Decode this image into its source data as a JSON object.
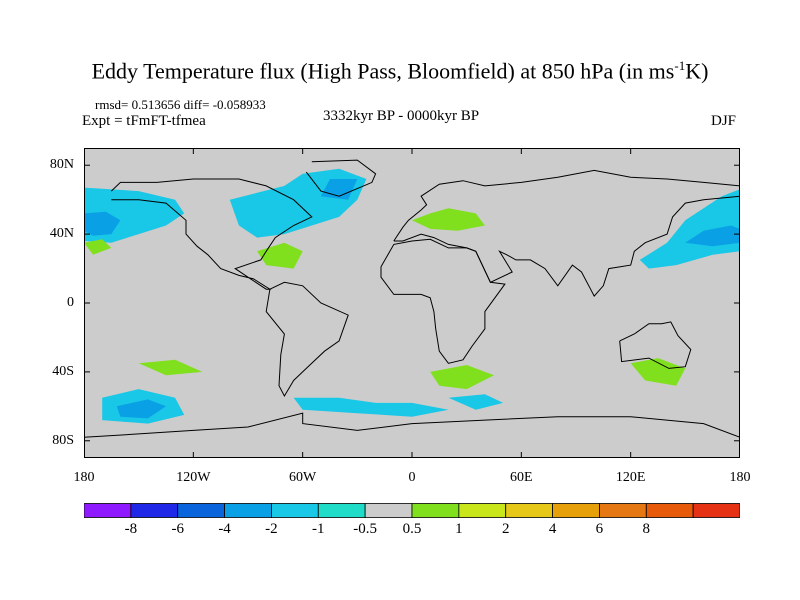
{
  "title": {
    "main": "Eddy Temperature flux (High Pass, Bloomfield) at 850 hPa (in ms",
    "sup": "-1",
    "tail": "K)"
  },
  "stats_text": "rmsd= 0.513656 diff= -0.058933",
  "experiment_text": "Expt = tFmFT-tfmea",
  "period_text": "3332kyr BP - 0000kyr BP",
  "season_text": "DJF",
  "map": {
    "lon_range": [
      -180,
      180
    ],
    "lat_range": [
      -90,
      90
    ],
    "y_ticks": [
      {
        "lat": 80,
        "label": "80N"
      },
      {
        "lat": 40,
        "label": "40N"
      },
      {
        "lat": 0,
        "label": "0"
      },
      {
        "lat": -40,
        "label": "40S"
      },
      {
        "lat": -80,
        "label": "80S"
      }
    ],
    "x_ticks": [
      {
        "lon": -180,
        "label": "180"
      },
      {
        "lon": -120,
        "label": "120W"
      },
      {
        "lon": -60,
        "label": "60W"
      },
      {
        "lon": 0,
        "label": "0"
      },
      {
        "lon": 60,
        "label": "60E"
      },
      {
        "lon": 120,
        "label": "120E"
      },
      {
        "lon": 180,
        "label": "180"
      }
    ],
    "background_color": "#cccccc",
    "anomaly_regions": [
      {
        "name": "north-pacific-east-cyan",
        "color": "#19c7e6",
        "points": [
          [
            -180,
            67
          ],
          [
            -150,
            65
          ],
          [
            -130,
            60
          ],
          [
            -125,
            52
          ],
          [
            -135,
            45
          ],
          [
            -150,
            40
          ],
          [
            -165,
            35
          ],
          [
            -180,
            36
          ]
        ]
      },
      {
        "name": "north-pacific-east-blue",
        "color": "#0aa0e6",
        "points": [
          [
            -180,
            52
          ],
          [
            -168,
            53
          ],
          [
            -160,
            48
          ],
          [
            -165,
            40
          ],
          [
            -175,
            39
          ],
          [
            -180,
            42
          ]
        ]
      },
      {
        "name": "north-atlantic-cyan",
        "color": "#19c7e6",
        "points": [
          [
            -100,
            60
          ],
          [
            -85,
            64
          ],
          [
            -70,
            68
          ],
          [
            -60,
            75
          ],
          [
            -40,
            78
          ],
          [
            -25,
            72
          ],
          [
            -30,
            60
          ],
          [
            -40,
            50
          ],
          [
            -55,
            45
          ],
          [
            -70,
            40
          ],
          [
            -85,
            38
          ],
          [
            -95,
            45
          ]
        ]
      },
      {
        "name": "greenland-blue",
        "color": "#0aa0e6",
        "points": [
          [
            -45,
            72
          ],
          [
            -30,
            72
          ],
          [
            -35,
            60
          ],
          [
            -50,
            62
          ]
        ]
      },
      {
        "name": "north-pacific-west-cyan",
        "color": "#19c7e6",
        "points": [
          [
            125,
            25
          ],
          [
            140,
            35
          ],
          [
            150,
            48
          ],
          [
            160,
            55
          ],
          [
            170,
            62
          ],
          [
            180,
            66
          ],
          [
            180,
            30
          ],
          [
            165,
            28
          ],
          [
            145,
            22
          ],
          [
            130,
            20
          ]
        ]
      },
      {
        "name": "north-pacific-west-blue",
        "color": "#0aa0e6",
        "points": [
          [
            150,
            35
          ],
          [
            160,
            42
          ],
          [
            175,
            45
          ],
          [
            180,
            43
          ],
          [
            180,
            35
          ],
          [
            165,
            33
          ]
        ]
      },
      {
        "name": "south-pacific-cyan",
        "color": "#19c7e6",
        "points": [
          [
            -170,
            -55
          ],
          [
            -150,
            -50
          ],
          [
            -130,
            -55
          ],
          [
            -125,
            -65
          ],
          [
            -145,
            -70
          ],
          [
            -170,
            -68
          ]
        ]
      },
      {
        "name": "south-pacific-blue",
        "color": "#0aa0e6",
        "points": [
          [
            -162,
            -60
          ],
          [
            -145,
            -56
          ],
          [
            -135,
            -60
          ],
          [
            -145,
            -67
          ],
          [
            -160,
            -66
          ]
        ]
      },
      {
        "name": "south-atlantic-cyan",
        "color": "#19c7e6",
        "points": [
          [
            -65,
            -55
          ],
          [
            -40,
            -55
          ],
          [
            -20,
            -58
          ],
          [
            0,
            -58
          ],
          [
            20,
            -62
          ],
          [
            0,
            -66
          ],
          [
            -30,
            -64
          ],
          [
            -60,
            -62
          ]
        ]
      },
      {
        "name": "south-indian-cyan",
        "color": "#19c7e6",
        "points": [
          [
            20,
            -55
          ],
          [
            40,
            -53
          ],
          [
            50,
            -58
          ],
          [
            35,
            -62
          ]
        ]
      },
      {
        "name": "europe-green",
        "color": "#80e01e",
        "points": [
          [
            0,
            48
          ],
          [
            10,
            52
          ],
          [
            20,
            55
          ],
          [
            35,
            52
          ],
          [
            40,
            45
          ],
          [
            25,
            42
          ],
          [
            10,
            43
          ]
        ]
      },
      {
        "name": "gulf-green",
        "color": "#80e01e",
        "points": [
          [
            -85,
            30
          ],
          [
            -70,
            35
          ],
          [
            -60,
            30
          ],
          [
            -65,
            20
          ],
          [
            -80,
            22
          ]
        ]
      },
      {
        "name": "east-pacific-green",
        "color": "#80e01e",
        "points": [
          [
            -180,
            35
          ],
          [
            -170,
            37
          ],
          [
            -165,
            32
          ],
          [
            -175,
            28
          ]
        ]
      },
      {
        "name": "south-atlantic-green",
        "color": "#80e01e",
        "points": [
          [
            -150,
            -35
          ],
          [
            -130,
            -33
          ],
          [
            -115,
            -40
          ],
          [
            -135,
            -42
          ]
        ]
      },
      {
        "name": "south-africa-green",
        "color": "#80e01e",
        "points": [
          [
            10,
            -40
          ],
          [
            30,
            -36
          ],
          [
            45,
            -42
          ],
          [
            30,
            -50
          ],
          [
            15,
            -48
          ]
        ]
      },
      {
        "name": "australia-green",
        "color": "#80e01e",
        "points": [
          [
            120,
            -35
          ],
          [
            135,
            -32
          ],
          [
            150,
            -38
          ],
          [
            145,
            -48
          ],
          [
            128,
            -45
          ]
        ]
      }
    ]
  },
  "colorbar": {
    "colors": [
      "#8f19ff",
      "#1e28e6",
      "#0a64dc",
      "#0aa0e6",
      "#19c7e6",
      "#1edcc8",
      "#cccccc",
      "#80e01e",
      "#c8e619",
      "#e6c819",
      "#e6a00a",
      "#e67814",
      "#e65a0a",
      "#e63214"
    ],
    "labels": [
      "-8",
      "-6",
      "-4",
      "-2",
      "-1",
      "-0.5",
      "0.5",
      "1",
      "2",
      "4",
      "6",
      "8"
    ]
  }
}
